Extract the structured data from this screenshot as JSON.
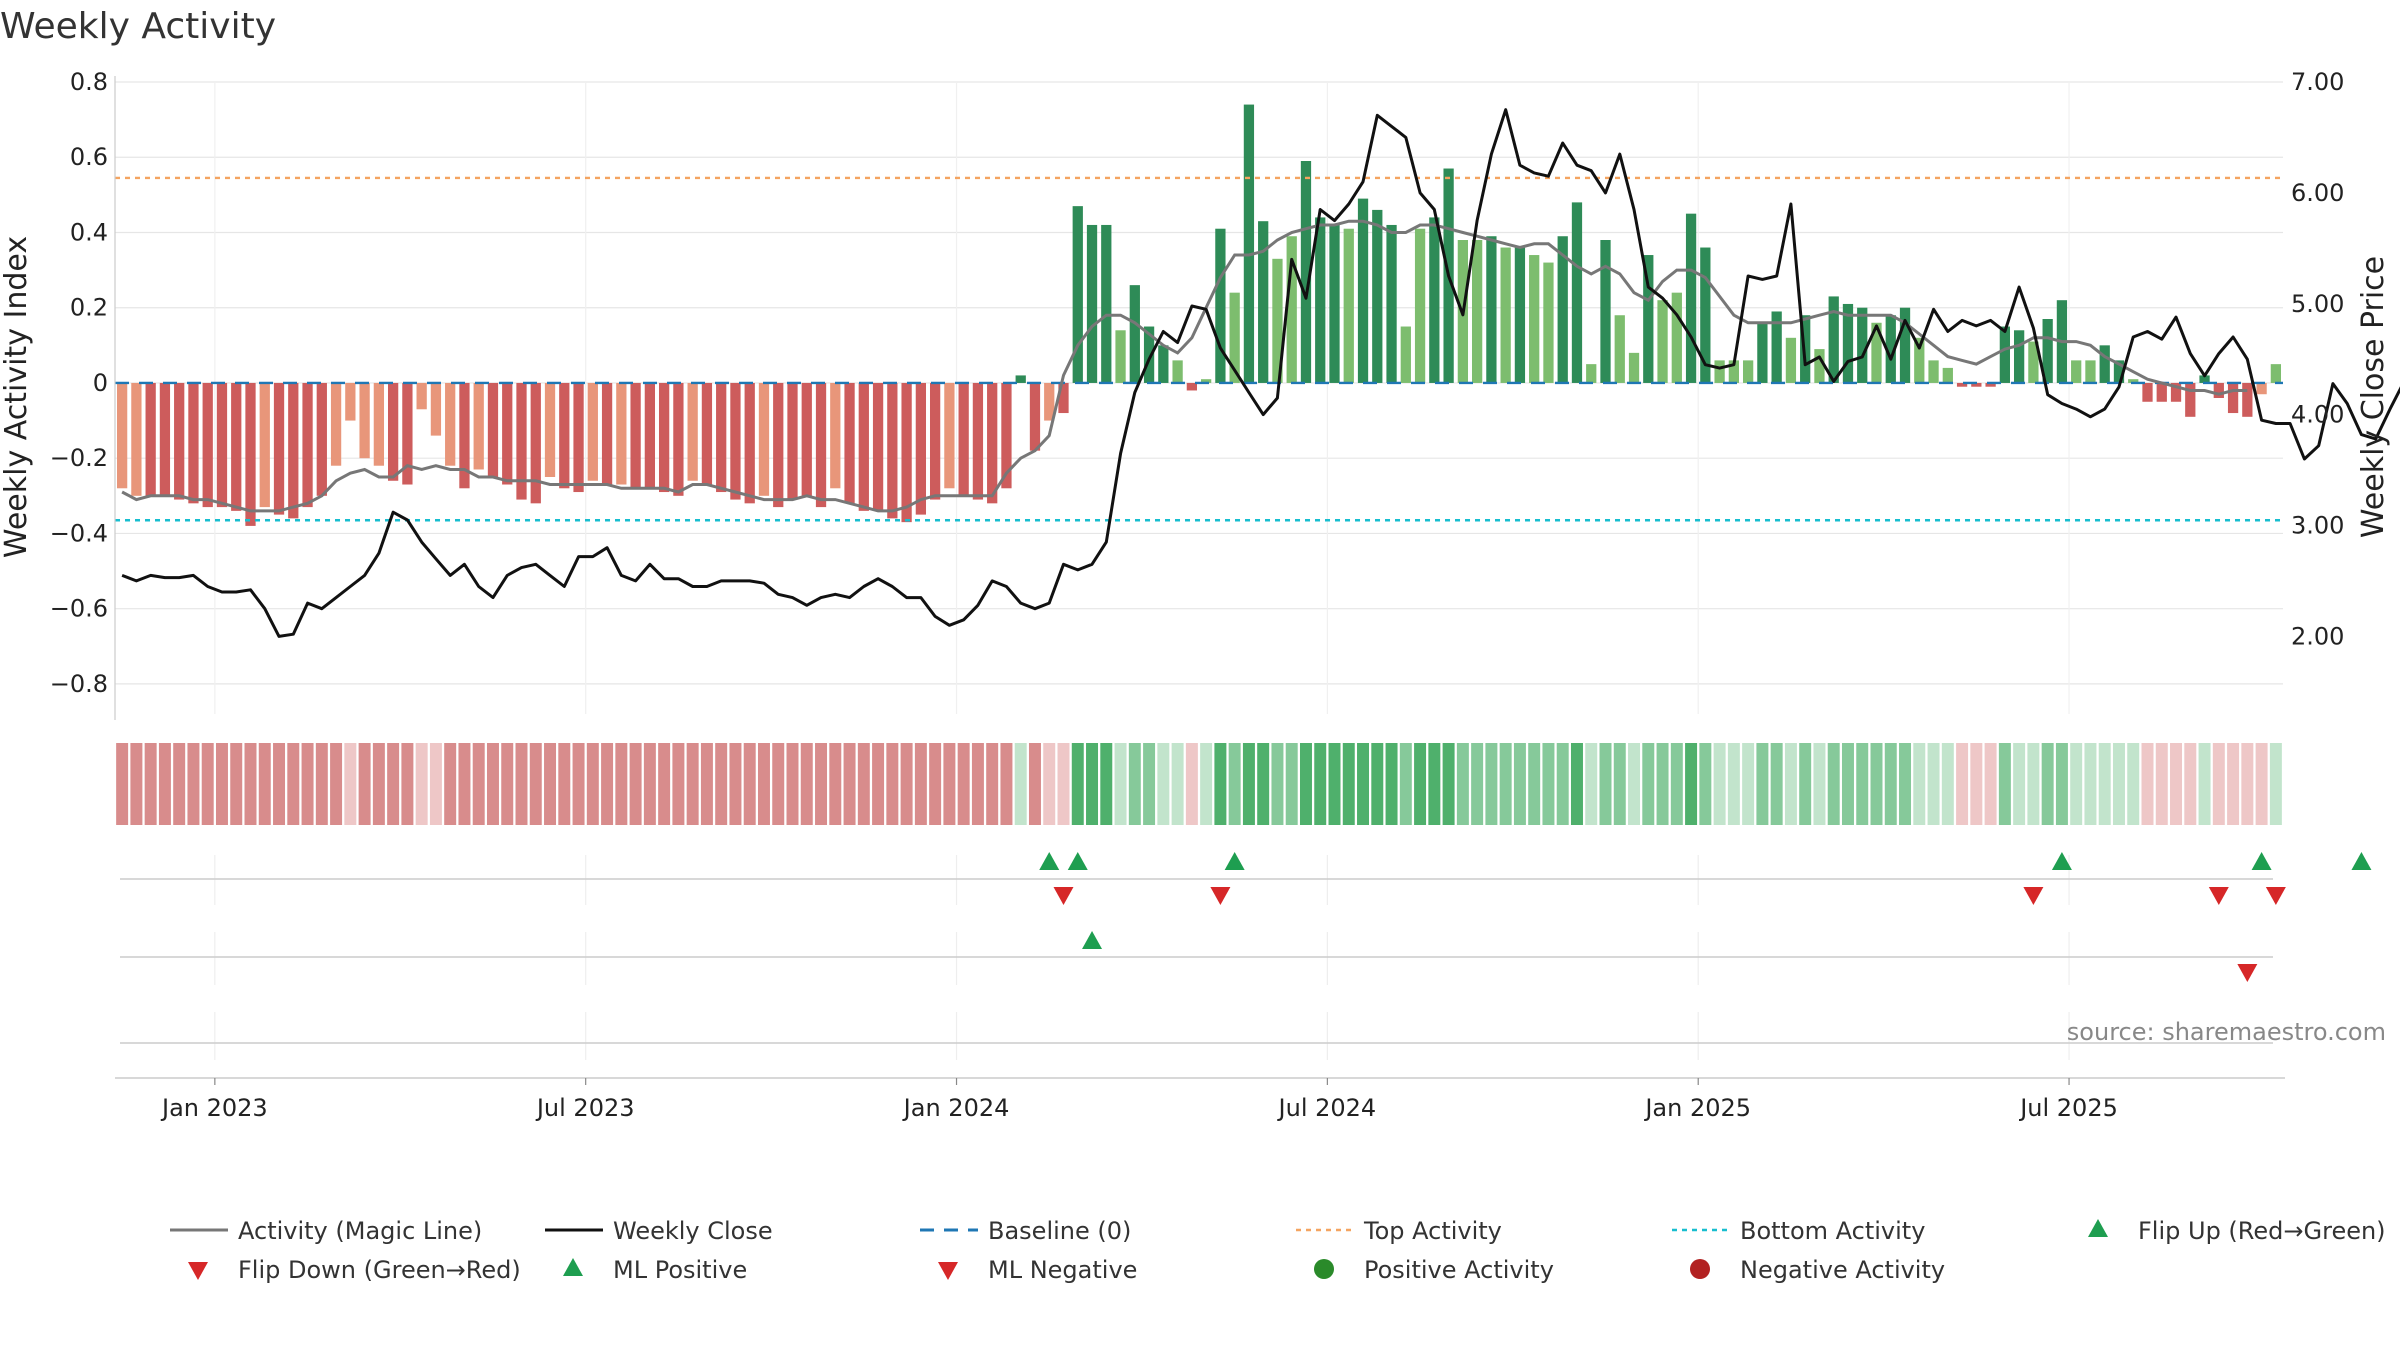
{
  "chart_data": {
    "type": "bar+line",
    "title": "Weekly Activity",
    "ylabel_left": "Weekly Activity Index",
    "ylabel_right": "Weekly Close Price",
    "ylim_left": [
      -0.88,
      0.8
    ],
    "ylim_right": [
      1.3,
      7.0
    ],
    "yticks_left": [
      {
        "v": 0.8,
        "label": "0.8"
      },
      {
        "v": 0.6,
        "label": "0.6"
      },
      {
        "v": 0.4,
        "label": "0.4"
      },
      {
        "v": 0.2,
        "label": "0.2"
      },
      {
        "v": 0,
        "label": "0"
      },
      {
        "v": -0.2,
        "label": "−0.2"
      },
      {
        "v": -0.4,
        "label": "−0.4"
      },
      {
        "v": -0.6,
        "label": "−0.6"
      },
      {
        "v": -0.8,
        "label": "−0.8"
      }
    ],
    "yticks_right": [
      {
        "v": 7,
        "label": "7.00"
      },
      {
        "v": 6,
        "label": "6.00"
      },
      {
        "v": 5,
        "label": "5.00"
      },
      {
        "v": 4,
        "label": "4.00"
      },
      {
        "v": 3,
        "label": "3.00"
      },
      {
        "v": 2,
        "label": "2.00"
      }
    ],
    "xticks": [
      {
        "week": 7,
        "label": "Jan 2023"
      },
      {
        "week": 33,
        "label": "Jul 2023"
      },
      {
        "week": 59,
        "label": "Jan 2024"
      },
      {
        "week": 85,
        "label": "Jul 2024"
      },
      {
        "week": 111,
        "label": "Jan 2025"
      },
      {
        "week": 137,
        "label": "Jul 2025"
      }
    ],
    "first_week": "2022-10-24",
    "top_activity": 0.545,
    "bottom_activity": -0.365,
    "baseline": 0,
    "activity": [
      -0.28,
      -0.3,
      -0.3,
      -0.3,
      -0.31,
      -0.32,
      -0.33,
      -0.33,
      -0.34,
      -0.38,
      -0.33,
      -0.35,
      -0.36,
      -0.33,
      -0.3,
      -0.22,
      -0.1,
      -0.2,
      -0.22,
      -0.26,
      -0.27,
      -0.07,
      -0.14,
      -0.22,
      -0.28,
      -0.23,
      -0.25,
      -0.27,
      -0.31,
      -0.32,
      -0.25,
      -0.28,
      -0.29,
      -0.26,
      -0.27,
      -0.27,
      -0.28,
      -0.28,
      -0.29,
      -0.3,
      -0.26,
      -0.27,
      -0.29,
      -0.31,
      -0.32,
      -0.3,
      -0.33,
      -0.31,
      -0.3,
      -0.33,
      -0.28,
      -0.32,
      -0.34,
      -0.34,
      -0.36,
      -0.37,
      -0.35,
      -0.31,
      -0.28,
      -0.3,
      -0.31,
      -0.32,
      -0.28,
      0.02,
      -0.18,
      -0.1,
      -0.08,
      0.47,
      0.42,
      0.42,
      0.14,
      0.26,
      0.15,
      0.1,
      0.06,
      -0.02,
      0.01,
      0.41,
      0.24,
      0.74,
      0.43,
      0.33,
      0.39,
      0.59,
      0.44,
      0.42,
      0.41,
      0.49,
      0.46,
      0.42,
      0.15,
      0.41,
      0.44,
      0.57,
      0.38,
      0.38,
      0.39,
      0.36,
      0.36,
      0.34,
      0.32,
      0.39,
      0.48,
      0.05,
      0.38,
      0.18,
      0.08,
      0.34,
      0.22,
      0.24,
      0.45,
      0.36,
      0.06,
      0.06,
      0.06,
      0.16,
      0.19,
      0.12,
      0.18,
      0.09,
      0.23,
      0.21,
      0.2,
      0.16,
      0.18,
      0.2,
      0.12,
      0.06,
      0.04,
      -0.01,
      -0.01,
      -0.01,
      0.15,
      0.14,
      0.11,
      0.17,
      0.22,
      0.06,
      0.06,
      0.1,
      0.06,
      0.01,
      -0.05,
      -0.05,
      -0.05,
      -0.09,
      0.02,
      -0.04,
      -0.08,
      -0.09,
      -0.03,
      0.05
    ],
    "magic_line": [
      -0.29,
      -0.31,
      -0.3,
      -0.3,
      -0.3,
      -0.31,
      -0.31,
      -0.32,
      -0.33,
      -0.34,
      -0.34,
      -0.34,
      -0.33,
      -0.32,
      -0.3,
      -0.26,
      -0.24,
      -0.23,
      -0.25,
      -0.25,
      -0.22,
      -0.23,
      -0.22,
      -0.23,
      -0.23,
      -0.25,
      -0.25,
      -0.26,
      -0.26,
      -0.26,
      -0.27,
      -0.27,
      -0.27,
      -0.27,
      -0.27,
      -0.28,
      -0.28,
      -0.28,
      -0.28,
      -0.29,
      -0.27,
      -0.27,
      -0.28,
      -0.29,
      -0.3,
      -0.31,
      -0.31,
      -0.31,
      -0.3,
      -0.31,
      -0.31,
      -0.32,
      -0.33,
      -0.34,
      -0.34,
      -0.33,
      -0.31,
      -0.3,
      -0.3,
      -0.3,
      -0.3,
      -0.3,
      -0.24,
      -0.2,
      -0.18,
      -0.14,
      0.02,
      0.1,
      0.15,
      0.18,
      0.18,
      0.16,
      0.13,
      0.1,
      0.08,
      0.12,
      0.2,
      0.28,
      0.34,
      0.34,
      0.35,
      0.38,
      0.4,
      0.41,
      0.42,
      0.42,
      0.43,
      0.43,
      0.42,
      0.4,
      0.4,
      0.42,
      0.42,
      0.41,
      0.4,
      0.39,
      0.38,
      0.37,
      0.36,
      0.37,
      0.37,
      0.34,
      0.31,
      0.29,
      0.31,
      0.29,
      0.24,
      0.22,
      0.27,
      0.3,
      0.3,
      0.28,
      0.23,
      0.18,
      0.16,
      0.16,
      0.16,
      0.16,
      0.17,
      0.18,
      0.19,
      0.18,
      0.18,
      0.18,
      0.18,
      0.16,
      0.13,
      0.1,
      0.07,
      0.06,
      0.05,
      0.07,
      0.09,
      0.1,
      0.12,
      0.12,
      0.11,
      0.11,
      0.1,
      0.07,
      0.05,
      0.03,
      0.01,
      0,
      -0.01,
      -0.02,
      -0.02,
      -0.03,
      -0.02,
      -0.02
    ],
    "weekly_close": [
      2.55,
      2.5,
      2.55,
      2.53,
      2.53,
      2.55,
      2.45,
      2.4,
      2.4,
      2.42,
      2.25,
      2.0,
      2.02,
      2.3,
      2.25,
      2.35,
      2.45,
      2.55,
      2.75,
      3.12,
      3.05,
      2.85,
      2.7,
      2.55,
      2.65,
      2.45,
      2.35,
      2.55,
      2.62,
      2.65,
      2.55,
      2.45,
      2.72,
      2.72,
      2.8,
      2.55,
      2.5,
      2.65,
      2.52,
      2.52,
      2.45,
      2.45,
      2.5,
      2.5,
      2.5,
      2.48,
      2.38,
      2.35,
      2.28,
      2.35,
      2.38,
      2.35,
      2.45,
      2.52,
      2.45,
      2.35,
      2.35,
      2.18,
      2.1,
      2.15,
      2.28,
      2.5,
      2.45,
      2.3,
      2.25,
      2.3,
      2.65,
      2.6,
      2.65,
      2.85,
      3.65,
      4.2,
      4.5,
      4.75,
      4.65,
      4.98,
      4.95,
      4.6,
      4.4,
      4.2,
      4.0,
      4.15,
      5.4,
      5.05,
      5.85,
      5.75,
      5.9,
      6.1,
      6.7,
      6.6,
      6.5,
      6.0,
      5.85,
      5.25,
      4.9,
      5.75,
      6.35,
      6.75,
      6.25,
      6.18,
      6.15,
      6.45,
      6.25,
      6.2,
      6.0,
      6.35,
      5.85,
      5.15,
      5.05,
      4.9,
      4.7,
      4.45,
      4.42,
      4.45,
      5.25,
      5.22,
      5.25,
      5.9,
      4.45,
      4.52,
      4.3,
      4.48,
      4.52,
      4.8,
      4.5,
      4.85,
      4.6,
      4.95,
      4.75,
      4.85,
      4.8,
      4.85,
      4.75,
      5.15,
      4.78,
      4.18,
      4.1,
      4.05,
      3.98,
      4.05,
      4.25,
      4.7,
      4.75,
      4.68,
      4.88,
      4.55,
      4.35,
      4.55,
      4.7,
      4.5,
      3.95,
      3.92,
      3.92,
      3.6,
      3.72,
      4.28,
      4.1,
      3.82,
      3.78,
      4.05,
      4.3
    ],
    "strip_colors": {
      "strong_neg": "#d88c8c",
      "weak_neg": "#eec7c7",
      "strong_pos": "#4fb06c",
      "mid_pos": "#86c99a",
      "weak_pos": "#c2e4cc"
    },
    "bar_colors": {
      "strong_neg": "#cd5c5c",
      "weak_neg": "#e8967a",
      "strong_pos": "#2e8b57",
      "weak_pos": "#7dbd6e"
    },
    "line_colors": {
      "magic": "#777777",
      "close": "#111111",
      "baseline": "#1f77b4",
      "top": "#f4a460",
      "bottom": "#17becf"
    },
    "event_colors": {
      "up": "#1e9e50",
      "down": "#d62728"
    },
    "flip_up_weeks": [
      65,
      67,
      78,
      136,
      150,
      157
    ],
    "flip_down_weeks": [
      66,
      77,
      134,
      147,
      151
    ],
    "ml_positive_weeks": [
      68
    ],
    "ml_negative_weeks": [
      149
    ],
    "positive_activity_weeks": [],
    "negative_activity_weeks": [],
    "source": "source: sharemaestro.com",
    "legend": [
      {
        "key": "magic",
        "label": "Activity (Magic Line)",
        "kind": "line",
        "color": "#777777"
      },
      {
        "key": "close",
        "label": "Weekly Close",
        "kind": "line",
        "color": "#111111"
      },
      {
        "key": "baseline",
        "label": "Baseline (0)",
        "kind": "dash",
        "color": "#1f77b4"
      },
      {
        "key": "top",
        "label": "Top Activity",
        "kind": "dot",
        "color": "#f4a460"
      },
      {
        "key": "bottom",
        "label": "Bottom Activity",
        "kind": "dot",
        "color": "#17becf"
      },
      {
        "key": "flip-up",
        "label": "Flip Up (Red→Green)",
        "kind": "tri-up",
        "color": "#1e9e50"
      },
      {
        "key": "flip-down",
        "label": "Flip Down (Green→Red)",
        "kind": "tri-down",
        "color": "#d62728"
      },
      {
        "key": "ml-positive",
        "label": "ML Positive",
        "kind": "tri-up",
        "color": "#1e9e50"
      },
      {
        "key": "ml-negative",
        "label": "ML Negative",
        "kind": "tri-down",
        "color": "#d62728"
      },
      {
        "key": "positive-activity",
        "label": "Positive Activity",
        "kind": "circle",
        "color": "#2a8a2a"
      },
      {
        "key": "negative-activity",
        "label": "Negative Activity",
        "kind": "circle",
        "color": "#b22222"
      }
    ]
  }
}
